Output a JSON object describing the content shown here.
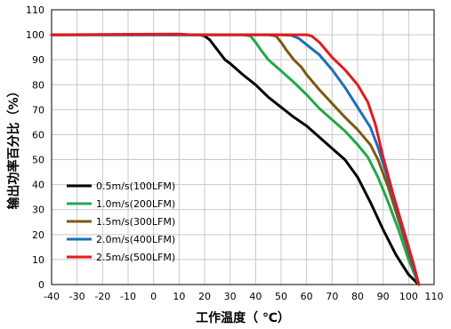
{
  "chart_data": {
    "type": "line",
    "title": "",
    "xlabel": "工作温度（ ℃）",
    "ylabel": "输出功率百分比（%）",
    "xlim": [
      -40,
      110
    ],
    "ylim": [
      0,
      110
    ],
    "x_ticks": [
      -40,
      -30,
      -20,
      -10,
      0,
      10,
      20,
      30,
      40,
      50,
      60,
      70,
      80,
      90,
      100,
      110
    ],
    "y_ticks": [
      0,
      10,
      20,
      30,
      40,
      50,
      60,
      70,
      80,
      90,
      100,
      110
    ],
    "grid": true,
    "legend_position": "bottom-left",
    "series": [
      {
        "name": "0.5m/s(100LFM)",
        "color": "#000000",
        "points": [
          [
            -40,
            100
          ],
          [
            10,
            100
          ],
          [
            18,
            100
          ],
          [
            20,
            99.5
          ],
          [
            22,
            98
          ],
          [
            25,
            94
          ],
          [
            28,
            90
          ],
          [
            30,
            88.5
          ],
          [
            35,
            84
          ],
          [
            40,
            80
          ],
          [
            45,
            75
          ],
          [
            50,
            71
          ],
          [
            55,
            67
          ],
          [
            60,
            63.5
          ],
          [
            65,
            59
          ],
          [
            70,
            54.5
          ],
          [
            75,
            50
          ],
          [
            80,
            43
          ],
          [
            85,
            33
          ],
          [
            90,
            22
          ],
          [
            95,
            12
          ],
          [
            100,
            4
          ],
          [
            104,
            0
          ]
        ]
      },
      {
        "name": "1.0m/s(200LFM)",
        "color": "#21a84b",
        "points": [
          [
            -40,
            100
          ],
          [
            35,
            100
          ],
          [
            38,
            99.5
          ],
          [
            40,
            97
          ],
          [
            42,
            94
          ],
          [
            45,
            90
          ],
          [
            50,
            85.5
          ],
          [
            55,
            81
          ],
          [
            60,
            76
          ],
          [
            65,
            70.5
          ],
          [
            70,
            66
          ],
          [
            75,
            61.5
          ],
          [
            80,
            56
          ],
          [
            84,
            51
          ],
          [
            88,
            43
          ],
          [
            92,
            33
          ],
          [
            96,
            22
          ],
          [
            100,
            10
          ],
          [
            104,
            0
          ]
        ]
      },
      {
        "name": "1.5m/s(300LFM)",
        "color": "#7b5a10",
        "points": [
          [
            -40,
            100
          ],
          [
            45,
            100
          ],
          [
            48,
            99.5
          ],
          [
            50,
            97
          ],
          [
            52,
            94
          ],
          [
            55,
            90
          ],
          [
            58,
            87
          ],
          [
            60,
            84
          ],
          [
            65,
            78
          ],
          [
            70,
            72.5
          ],
          [
            75,
            67
          ],
          [
            80,
            62
          ],
          [
            85,
            56
          ],
          [
            88,
            50
          ],
          [
            92,
            39
          ],
          [
            96,
            26
          ],
          [
            100,
            13
          ],
          [
            104,
            0
          ]
        ]
      },
      {
        "name": "2.0m/s(400LFM)",
        "color": "#1b6fb8",
        "points": [
          [
            -40,
            100
          ],
          [
            50,
            100
          ],
          [
            54,
            99.8
          ],
          [
            57,
            98.5
          ],
          [
            60,
            96
          ],
          [
            65,
            92
          ],
          [
            70,
            86
          ],
          [
            75,
            79
          ],
          [
            80,
            71
          ],
          [
            85,
            63
          ],
          [
            88,
            55
          ],
          [
            92,
            42
          ],
          [
            96,
            28
          ],
          [
            100,
            14
          ],
          [
            104,
            0
          ]
        ]
      },
      {
        "name": "2.5m/s(500LFM)",
        "color": "#e3191d",
        "points": [
          [
            -40,
            100
          ],
          [
            10,
            100.3
          ],
          [
            15,
            100
          ],
          [
            55,
            100
          ],
          [
            60,
            100
          ],
          [
            62,
            99.5
          ],
          [
            65,
            97
          ],
          [
            70,
            91
          ],
          [
            75,
            86
          ],
          [
            80,
            80
          ],
          [
            84,
            73
          ],
          [
            87,
            64
          ],
          [
            90,
            51
          ],
          [
            94,
            36
          ],
          [
            98,
            22
          ],
          [
            102,
            8
          ],
          [
            104,
            0
          ]
        ]
      }
    ]
  }
}
